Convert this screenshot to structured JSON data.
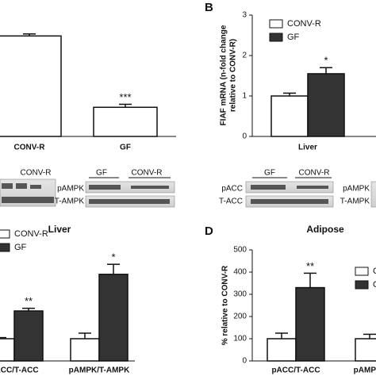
{
  "panels": [
    "B",
    "D"
  ],
  "blots": [
    {
      "headers": [
        "CONV-R"
      ],
      "rows": []
    },
    {
      "headers": [
        "GF",
        "CONV-R"
      ],
      "rows": [
        "pAMPK",
        "T-AMPK"
      ]
    },
    {
      "headers": [
        "GF",
        "CONV-R"
      ],
      "rows": [
        "pACC",
        "T-ACC"
      ]
    },
    {
      "headers": [],
      "rows": [
        "pAMPK",
        "T-AMPK"
      ]
    }
  ],
  "chart_data": [
    {
      "type": "bar",
      "categories": [
        "CONV-R",
        "GF"
      ],
      "ylim": [
        0,
        120
      ],
      "series": [
        {
          "name": null,
          "color": "#ffffff",
          "values": [
            100,
            29
          ],
          "errors": [
            2,
            3
          ],
          "annotations": [
            null,
            "***"
          ]
        }
      ]
    },
    {
      "type": "bar",
      "ylabel": [
        "FIAF mRNA (n-fold change",
        "relative to CONV-R)"
      ],
      "categories": [
        "Liver"
      ],
      "ylim": [
        0,
        3
      ],
      "yticks": [
        0,
        1,
        2,
        3
      ],
      "series": [
        {
          "name": "CONV-R",
          "color": "#ffffff",
          "values": [
            1.0
          ],
          "errors": [
            0.07
          ],
          "annotations": [
            null
          ]
        },
        {
          "name": "GF",
          "color": "#333333",
          "values": [
            1.55
          ],
          "errors": [
            0.15
          ],
          "annotations": [
            "*"
          ]
        }
      ]
    },
    {
      "type": "bar",
      "title": "Liver",
      "categories": [
        "pACC/T-ACC",
        "pAMPK/T-AMPK"
      ],
      "ylim": [
        0,
        500
      ],
      "series": [
        {
          "name": "CONV-R",
          "color": "#ffffff",
          "values": [
            100,
            100
          ],
          "errors": [
            5,
            25
          ],
          "annotations": [
            null,
            null
          ]
        },
        {
          "name": "GF",
          "color": "#333333",
          "values": [
            225,
            390
          ],
          "errors": [
            12,
            45
          ],
          "annotations": [
            "**",
            "*"
          ]
        }
      ]
    },
    {
      "type": "bar",
      "title": "Adipose",
      "ylabel": [
        "% relative to CONV-R"
      ],
      "categories": [
        "pACC/T-ACC",
        "pAMPK/T-AMPK"
      ],
      "ylim": [
        0,
        500
      ],
      "yticks": [
        0,
        100,
        200,
        300,
        400,
        500
      ],
      "series": [
        {
          "name": "CONV-R",
          "color": "#ffffff",
          "values": [
            100,
            100
          ],
          "errors": [
            25,
            20
          ],
          "annotations": [
            null,
            null
          ]
        },
        {
          "name": "GF",
          "color": "#333333",
          "values": [
            330,
            null
          ],
          "errors": [
            65,
            null
          ],
          "annotations": [
            "**",
            null
          ]
        }
      ]
    }
  ]
}
